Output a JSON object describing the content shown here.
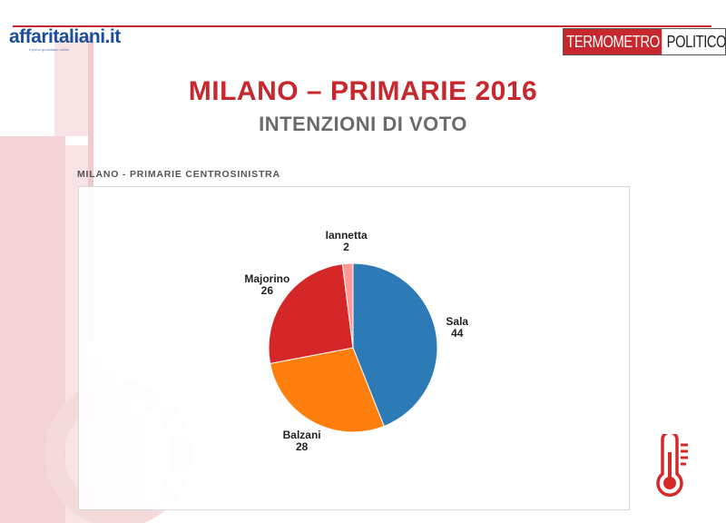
{
  "header": {
    "logo_left": {
      "name": "affaritaliani",
      "tld": ".it",
      "tagline": "il primo quotidiano online"
    },
    "logo_right": {
      "part1": "TERMOMETRO",
      "part2": "POLITICO"
    }
  },
  "title": "MILANO – PRIMARIE 2016",
  "subtitle": "INTENZIONI DI VOTO",
  "chart_label": "MILANO - PRIMARIE CENTROSINISTRA",
  "colors": {
    "brand_red": "#c7282e",
    "brand_blue": "#1b4f9c"
  },
  "icons": [
    "thermometer-icon"
  ],
  "chart_data": {
    "type": "pie",
    "title": "MILANO - PRIMARIE CENTROSINISTRA",
    "slices": [
      {
        "label": "Sala",
        "value": 44,
        "color": "#2c7bb6"
      },
      {
        "label": "Balzani",
        "value": 28,
        "color": "#ff7f0e"
      },
      {
        "label": "Majorino",
        "value": 26,
        "color": "#d62728"
      },
      {
        "label": "Iannetta",
        "value": 2,
        "color": "#ff9896"
      }
    ]
  }
}
